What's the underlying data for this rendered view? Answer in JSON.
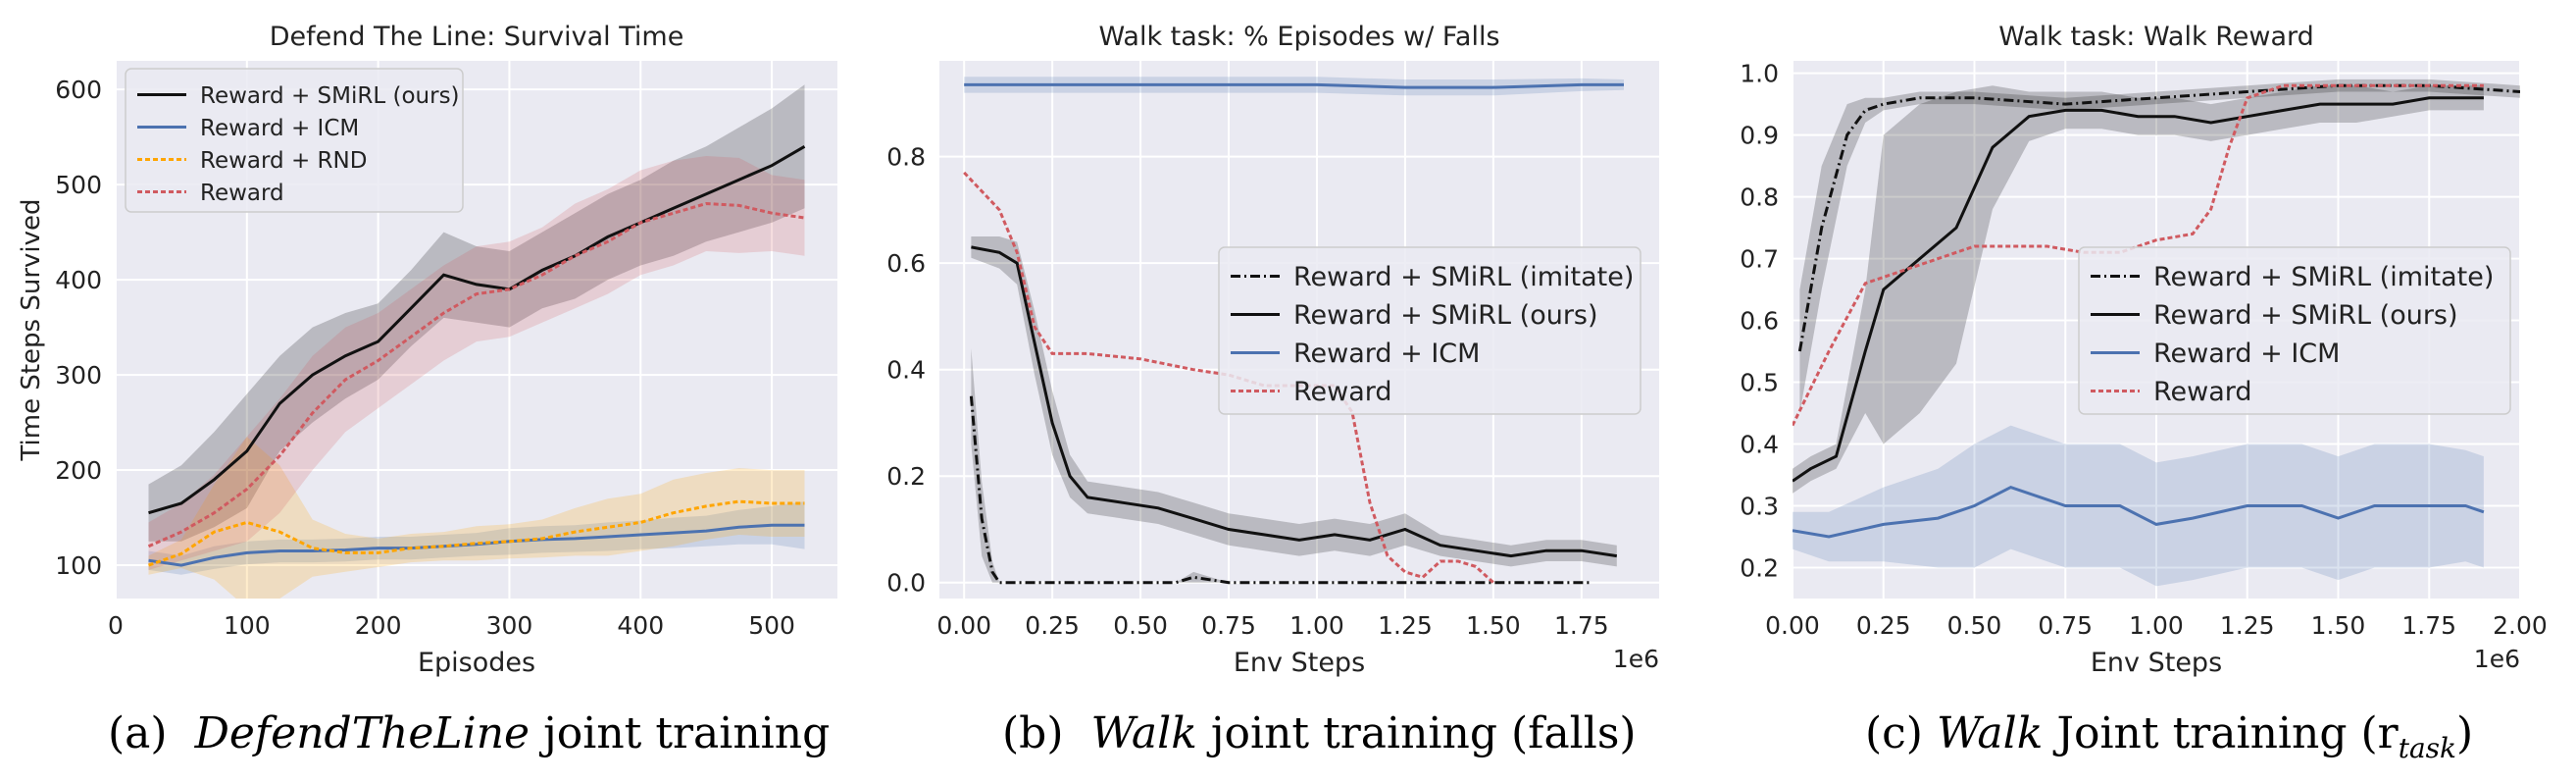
{
  "captions": [
    {
      "prefix": "(a)",
      "italic": "DefendTheLine",
      "rest": "joint training"
    },
    {
      "prefix": "(b)",
      "italic": "Walk",
      "rest": "joint training (falls)"
    },
    {
      "prefix": "(c)",
      "italic": "Walk",
      "rest": "Joint training (r",
      "sub": "task",
      "suffix": ")"
    }
  ],
  "colors": {
    "black": "#111111",
    "icm": "#4c72b0",
    "rnd": "#ffa500",
    "reward": "#d05a60",
    "panel_bg": "#eaeaf2",
    "grid": "#ffffff"
  },
  "chart_data": [
    {
      "type": "line",
      "title": "Defend The Line: Survival Time",
      "xlabel": "Episodes",
      "ylabel": "Time Steps Survived",
      "xlim": [
        0,
        550
      ],
      "ylim": [
        65,
        630
      ],
      "xticks": [
        0,
        100,
        200,
        300,
        400,
        500
      ],
      "xtick_labels": [
        "0",
        "100",
        "200",
        "300",
        "400",
        "500"
      ],
      "yticks": [
        100,
        200,
        300,
        400,
        500,
        600
      ],
      "ytick_labels": [
        "100",
        "200",
        "300",
        "400",
        "500",
        "600"
      ],
      "x_multiplier_label": "",
      "grid": true,
      "legend_position": "top-left",
      "series": [
        {
          "name": "Reward + SMiRL (ours)",
          "color": "#111111",
          "dash": "solid",
          "x": [
            25,
            50,
            75,
            100,
            125,
            150,
            175,
            200,
            225,
            250,
            275,
            300,
            325,
            350,
            375,
            400,
            425,
            450,
            475,
            500,
            525
          ],
          "y": [
            155,
            165,
            190,
            220,
            270,
            300,
            320,
            335,
            370,
            405,
            395,
            390,
            410,
            425,
            445,
            460,
            475,
            490,
            505,
            520,
            540
          ],
          "band": [
            30,
            40,
            50,
            60,
            50,
            50,
            45,
            40,
            40,
            45,
            40,
            40,
            40,
            45,
            45,
            45,
            50,
            50,
            55,
            60,
            65
          ]
        },
        {
          "name": "Reward + ICM",
          "color": "#4c72b0",
          "dash": "solid",
          "x": [
            25,
            50,
            75,
            100,
            125,
            150,
            175,
            200,
            225,
            250,
            275,
            300,
            325,
            350,
            375,
            400,
            425,
            450,
            475,
            500,
            525
          ],
          "y": [
            105,
            100,
            108,
            113,
            115,
            115,
            116,
            118,
            118,
            120,
            122,
            125,
            127,
            128,
            130,
            132,
            134,
            136,
            140,
            142,
            142
          ],
          "band": [
            10,
            10,
            12,
            12,
            12,
            12,
            12,
            12,
            12,
            12,
            12,
            14,
            14,
            14,
            15,
            15,
            16,
            16,
            18,
            20,
            25
          ]
        },
        {
          "name": "Reward + RND",
          "color": "#ffa500",
          "dash": "5,3",
          "x": [
            25,
            50,
            75,
            100,
            125,
            150,
            175,
            200,
            225,
            250,
            275,
            300,
            325,
            350,
            375,
            400,
            425,
            450,
            475,
            500,
            525
          ],
          "y": [
            100,
            112,
            135,
            145,
            135,
            118,
            113,
            113,
            118,
            120,
            123,
            125,
            128,
            135,
            140,
            145,
            155,
            162,
            167,
            165,
            165
          ],
          "band": [
            10,
            15,
            50,
            90,
            70,
            30,
            20,
            15,
            15,
            15,
            18,
            18,
            20,
            25,
            30,
            30,
            35,
            35,
            35,
            35,
            35
          ]
        },
        {
          "name": "Reward",
          "color": "#d05a60",
          "dash": "5,3",
          "x": [
            25,
            50,
            75,
            100,
            125,
            150,
            175,
            200,
            225,
            250,
            275,
            300,
            325,
            350,
            375,
            400,
            425,
            450,
            475,
            500,
            525
          ],
          "y": [
            120,
            135,
            155,
            180,
            215,
            260,
            295,
            315,
            340,
            365,
            385,
            390,
            405,
            425,
            440,
            460,
            470,
            480,
            478,
            470,
            465
          ],
          "band": [
            25,
            30,
            40,
            55,
            60,
            60,
            55,
            50,
            50,
            50,
            50,
            50,
            50,
            55,
            55,
            55,
            55,
            50,
            50,
            40,
            40
          ]
        }
      ]
    },
    {
      "type": "line",
      "title": "Walk task: % Episodes w/ Falls",
      "xlabel": "Env Steps",
      "ylabel": "",
      "xlim": [
        -0.07,
        1.97
      ],
      "ylim": [
        -0.03,
        0.98
      ],
      "xticks": [
        0,
        0.25,
        0.5,
        0.75,
        1.0,
        1.25,
        1.5,
        1.75
      ],
      "xtick_labels": [
        "0.00",
        "0.25",
        "0.50",
        "0.75",
        "1.00",
        "1.25",
        "1.50",
        "1.75"
      ],
      "yticks": [
        0,
        0.2,
        0.4,
        0.6,
        0.8
      ],
      "ytick_labels": [
        "0.0",
        "0.2",
        "0.4",
        "0.6",
        "0.8"
      ],
      "x_multiplier_label": "1e6",
      "grid": true,
      "legend_position": "center-right",
      "series": [
        {
          "name": "Reward + SMiRL (imitate)",
          "color": "#111111",
          "dash": "10,4,2,4",
          "x": [
            0.02,
            0.05,
            0.08,
            0.1,
            0.15,
            0.25,
            0.5,
            0.6,
            0.65,
            0.75,
            1.0,
            1.25,
            1.5,
            1.75,
            1.78
          ],
          "y": [
            0.35,
            0.12,
            0.02,
            0.0,
            0.0,
            0.0,
            0.0,
            0.0,
            0.01,
            0.0,
            0.0,
            0.0,
            0.0,
            0.0,
            0.0
          ],
          "band": [
            0.09,
            0.07,
            0.02,
            0.0,
            0.0,
            0.0,
            0.0,
            0.0,
            0.01,
            0.0,
            0.0,
            0.0,
            0.0,
            0.0,
            0.0
          ]
        },
        {
          "name": "Reward + SMiRL (ours)",
          "color": "#111111",
          "dash": "solid",
          "x": [
            0.02,
            0.1,
            0.15,
            0.2,
            0.25,
            0.3,
            0.35,
            0.45,
            0.55,
            0.65,
            0.75,
            0.85,
            0.95,
            1.05,
            1.15,
            1.25,
            1.35,
            1.45,
            1.55,
            1.65,
            1.75,
            1.85
          ],
          "y": [
            0.63,
            0.62,
            0.6,
            0.45,
            0.3,
            0.2,
            0.16,
            0.15,
            0.14,
            0.12,
            0.1,
            0.09,
            0.08,
            0.09,
            0.08,
            0.1,
            0.07,
            0.06,
            0.05,
            0.06,
            0.06,
            0.05
          ],
          "band": [
            0.02,
            0.03,
            0.04,
            0.06,
            0.06,
            0.04,
            0.03,
            0.03,
            0.03,
            0.03,
            0.03,
            0.03,
            0.03,
            0.03,
            0.03,
            0.03,
            0.02,
            0.02,
            0.02,
            0.02,
            0.02,
            0.02
          ]
        },
        {
          "name": "Reward + ICM",
          "color": "#4c72b0",
          "dash": "solid",
          "x": [
            0.0,
            0.25,
            0.5,
            0.75,
            1.0,
            1.25,
            1.5,
            1.75,
            1.87
          ],
          "y": [
            0.935,
            0.935,
            0.935,
            0.935,
            0.935,
            0.93,
            0.93,
            0.935,
            0.935
          ],
          "band": [
            0.015,
            0.015,
            0.015,
            0.015,
            0.015,
            0.015,
            0.015,
            0.012,
            0.01
          ]
        },
        {
          "name": "Reward",
          "color": "#d05a60",
          "dash": "5,3",
          "x": [
            0.0,
            0.1,
            0.15,
            0.2,
            0.25,
            0.35,
            0.5,
            0.65,
            0.75,
            0.85,
            0.95,
            1.05,
            1.1,
            1.15,
            1.2,
            1.25,
            1.3,
            1.35,
            1.4,
            1.45,
            1.5
          ],
          "y": [
            0.77,
            0.7,
            0.62,
            0.48,
            0.43,
            0.43,
            0.42,
            0.4,
            0.39,
            0.37,
            0.37,
            0.37,
            0.32,
            0.15,
            0.05,
            0.02,
            0.01,
            0.04,
            0.04,
            0.03,
            0.0
          ],
          "band": [
            0,
            0,
            0,
            0,
            0,
            0,
            0,
            0,
            0,
            0,
            0,
            0,
            0,
            0,
            0,
            0,
            0,
            0,
            0,
            0,
            0
          ]
        }
      ]
    },
    {
      "type": "line",
      "title": "Walk task: Walk Reward",
      "xlabel": "Env Steps",
      "ylabel": "",
      "xlim": [
        0,
        2.0
      ],
      "ylim": [
        0.15,
        1.02
      ],
      "xticks": [
        0,
        0.25,
        0.5,
        0.75,
        1.0,
        1.25,
        1.5,
        1.75,
        2.0
      ],
      "xtick_labels": [
        "0.00",
        "0.25",
        "0.50",
        "0.75",
        "1.00",
        "1.25",
        "1.50",
        "1.75",
        "2.00"
      ],
      "yticks": [
        0.2,
        0.3,
        0.4,
        0.5,
        0.6,
        0.7,
        0.8,
        0.9,
        1.0
      ],
      "ytick_labels": [
        "0.2",
        "0.3",
        "0.4",
        "0.5",
        "0.6",
        "0.7",
        "0.8",
        "0.9",
        "1.0"
      ],
      "x_multiplier_label": "1e6",
      "grid": true,
      "legend_position": "center-right",
      "series": [
        {
          "name": "Reward + SMiRL (imitate)",
          "color": "#111111",
          "dash": "10,4,2,4",
          "x": [
            0.02,
            0.08,
            0.15,
            0.2,
            0.25,
            0.35,
            0.5,
            0.75,
            1.0,
            1.25,
            1.5,
            1.75,
            2.0
          ],
          "y": [
            0.55,
            0.75,
            0.9,
            0.94,
            0.95,
            0.96,
            0.96,
            0.95,
            0.96,
            0.97,
            0.98,
            0.98,
            0.97
          ],
          "band": [
            0.1,
            0.1,
            0.05,
            0.02,
            0.01,
            0.01,
            0.01,
            0.01,
            0.01,
            0.01,
            0.01,
            0.01,
            0.01
          ]
        },
        {
          "name": "Reward + SMiRL (ours)",
          "color": "#111111",
          "dash": "solid",
          "x": [
            0.0,
            0.05,
            0.12,
            0.2,
            0.25,
            0.35,
            0.45,
            0.55,
            0.65,
            0.75,
            0.85,
            0.95,
            1.05,
            1.15,
            1.25,
            1.35,
            1.45,
            1.55,
            1.65,
            1.75,
            1.85,
            1.9
          ],
          "y": [
            0.34,
            0.36,
            0.38,
            0.55,
            0.65,
            0.7,
            0.75,
            0.88,
            0.93,
            0.94,
            0.94,
            0.93,
            0.93,
            0.92,
            0.93,
            0.94,
            0.95,
            0.95,
            0.95,
            0.96,
            0.96,
            0.96
          ],
          "band": [
            0.02,
            0.02,
            0.02,
            0.1,
            0.25,
            0.25,
            0.22,
            0.1,
            0.04,
            0.03,
            0.03,
            0.03,
            0.03,
            0.03,
            0.03,
            0.03,
            0.03,
            0.03,
            0.02,
            0.02,
            0.02,
            0.02
          ]
        },
        {
          "name": "Reward + ICM",
          "color": "#4c72b0",
          "dash": "solid",
          "x": [
            0.0,
            0.1,
            0.25,
            0.4,
            0.5,
            0.6,
            0.75,
            0.9,
            1.0,
            1.1,
            1.25,
            1.4,
            1.5,
            1.6,
            1.75,
            1.85,
            1.9
          ],
          "y": [
            0.26,
            0.25,
            0.27,
            0.28,
            0.3,
            0.33,
            0.3,
            0.3,
            0.27,
            0.28,
            0.3,
            0.3,
            0.28,
            0.3,
            0.3,
            0.3,
            0.29
          ],
          "band": [
            0.03,
            0.04,
            0.06,
            0.08,
            0.1,
            0.1,
            0.1,
            0.1,
            0.1,
            0.1,
            0.1,
            0.1,
            0.1,
            0.1,
            0.1,
            0.09,
            0.09
          ]
        },
        {
          "name": "Reward",
          "color": "#d05a60",
          "dash": "5,3",
          "x": [
            0.0,
            0.1,
            0.2,
            0.3,
            0.4,
            0.5,
            0.6,
            0.7,
            0.8,
            0.9,
            1.0,
            1.1,
            1.15,
            1.2,
            1.25,
            1.35,
            1.5,
            1.75,
            1.9
          ],
          "y": [
            0.43,
            0.55,
            0.66,
            0.68,
            0.7,
            0.72,
            0.72,
            0.72,
            0.71,
            0.71,
            0.73,
            0.74,
            0.78,
            0.88,
            0.96,
            0.98,
            0.98,
            0.98,
            0.98
          ],
          "band": [
            0,
            0,
            0,
            0,
            0,
            0,
            0,
            0,
            0,
            0,
            0,
            0,
            0,
            0,
            0,
            0,
            0,
            0,
            0
          ]
        }
      ]
    }
  ]
}
